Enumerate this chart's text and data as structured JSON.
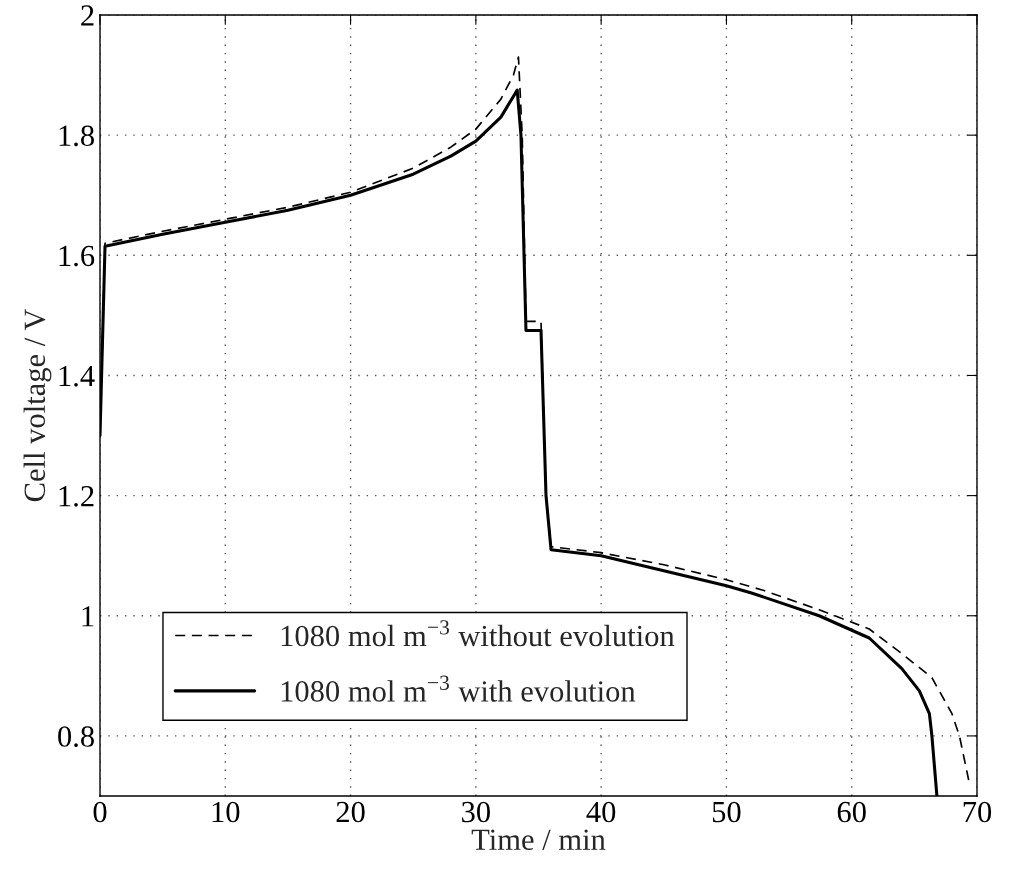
{
  "chart_data": {
    "type": "line",
    "xlabel": "Time / min",
    "ylabel": "Cell voltage / V",
    "xlim": [
      0,
      70
    ],
    "ylim": [
      0.7,
      2
    ],
    "xticks": [
      0,
      10,
      20,
      30,
      40,
      50,
      60,
      70
    ],
    "yticks": [
      0.8,
      1,
      1.2,
      1.4,
      1.6,
      1.8,
      2
    ],
    "grid": true,
    "legend": "bottom left",
    "marker": "none",
    "series": [
      {
        "name": "1080 mol m$^{−3}$ without evolution",
        "color": "#000000",
        "line_style": "dashed",
        "x": [
          0,
          0.4,
          5,
          10,
          15,
          20,
          25,
          28,
          30,
          32,
          33,
          33.4,
          33.7,
          34,
          35.2,
          35.6,
          36,
          40,
          45,
          50,
          53,
          57.4,
          61.4,
          64,
          66.4,
          68,
          68.6,
          69.4
        ],
        "values": [
          1.3,
          1.62,
          1.64,
          1.66,
          1.68,
          1.705,
          1.745,
          1.78,
          1.81,
          1.86,
          1.9,
          1.93,
          1.8,
          1.49,
          1.49,
          1.2,
          1.115,
          1.105,
          1.085,
          1.06,
          1.042,
          1.01,
          0.978,
          0.937,
          0.897,
          0.837,
          0.8,
          0.72
        ]
      },
      {
        "name": "1080 mol m$^{−3}$ with evolution",
        "color": "#000000",
        "line_style": "solid",
        "x": [
          0,
          0.4,
          5,
          10,
          15,
          20,
          25,
          28,
          30,
          32,
          33.3,
          33.6,
          34,
          35.2,
          35.6,
          36,
          40,
          45,
          50,
          52,
          57.4,
          61.4,
          64,
          65.4,
          66.2,
          66.4,
          66.8
        ],
        "values": [
          1.3,
          1.615,
          1.635,
          1.655,
          1.675,
          1.7,
          1.735,
          1.765,
          1.79,
          1.83,
          1.875,
          1.8,
          1.475,
          1.475,
          1.2,
          1.11,
          1.1,
          1.075,
          1.05,
          1.038,
          1.0,
          0.963,
          0.912,
          0.875,
          0.837,
          0.8,
          0.7
        ]
      }
    ]
  }
}
